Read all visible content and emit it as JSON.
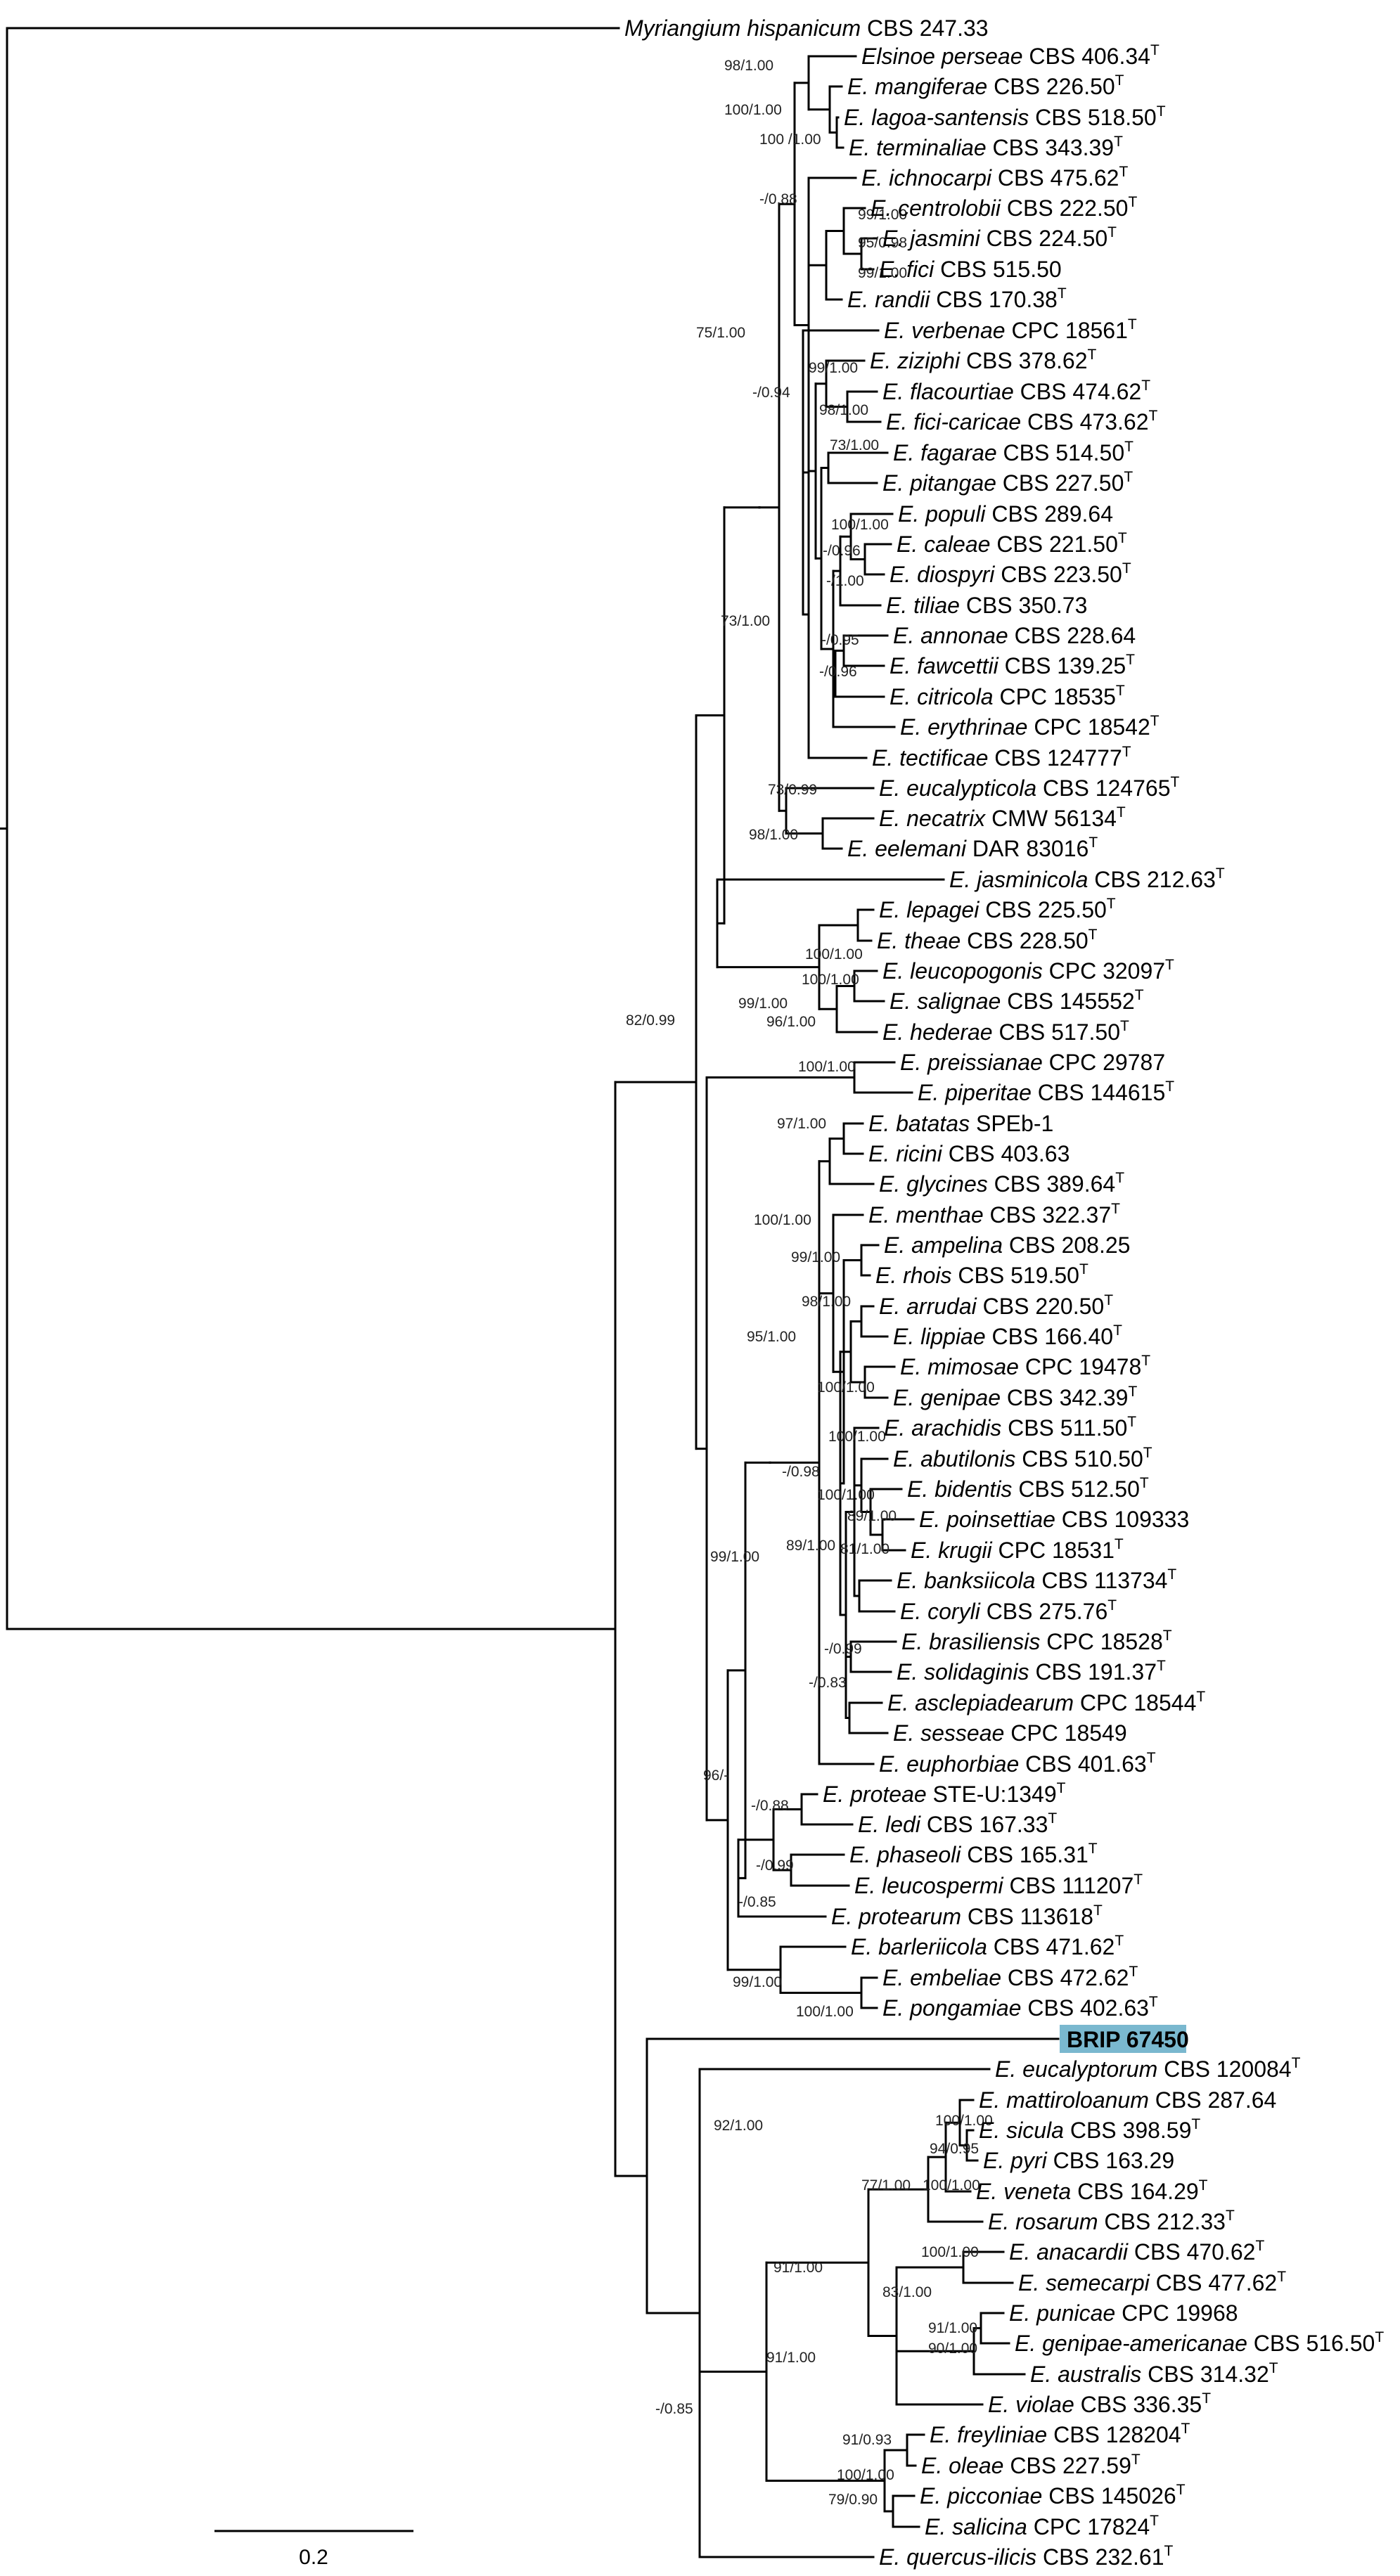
{
  "figure": {
    "highlight_label": "BRIP 67450",
    "highlight_color": "#7ab8cf",
    "scale_bar": {
      "value": "0.2"
    }
  },
  "taxa": [
    {
      "id": "myr",
      "sp": "Myriangium hispanicum",
      "str": "CBS 247.33",
      "t": false
    },
    {
      "id": "per",
      "sp": "Elsinoe perseae",
      "str": "CBS 406.34",
      "t": true
    },
    {
      "id": "man",
      "sp": "E. mangiferae",
      "str": "CBS 226.50",
      "t": true
    },
    {
      "id": "lag",
      "sp": "E. lagoa-santensis",
      "str": "CBS 518.50",
      "t": true
    },
    {
      "id": "ter",
      "sp": "E. terminaliae",
      "str": "CBS 343.39",
      "t": true
    },
    {
      "id": "ich",
      "sp": "E. ichnocarpi",
      "str": "CBS 475.62",
      "t": true
    },
    {
      "id": "cen",
      "sp": "E. centrolobii",
      "str": "CBS 222.50",
      "t": true
    },
    {
      "id": "jas",
      "sp": "E. jasmini",
      "str": "CBS 224.50",
      "t": true
    },
    {
      "id": "fic",
      "sp": "E. fici",
      "str": "CBS 515.50",
      "t": false
    },
    {
      "id": "ran",
      "sp": "E. randii",
      "str": "CBS 170.38",
      "t": true
    },
    {
      "id": "ver",
      "sp": "E. verbenae",
      "str": "CPC 18561",
      "t": true
    },
    {
      "id": "ziz",
      "sp": "E. ziziphi",
      "str": "CBS 378.62",
      "t": true
    },
    {
      "id": "fla",
      "sp": "E. flacourtiae",
      "str": "CBS 474.62",
      "t": true
    },
    {
      "id": "fcc",
      "sp": "E. fici-caricae",
      "str": "CBS 473.62",
      "t": true
    },
    {
      "id": "fag",
      "sp": "E. fagarae",
      "str": "CBS 514.50",
      "t": true
    },
    {
      "id": "pit",
      "sp": "E. pitangae",
      "str": "CBS 227.50",
      "t": true
    },
    {
      "id": "pop",
      "sp": "E. populi",
      "str": "CBS 289.64",
      "t": false
    },
    {
      "id": "cal",
      "sp": "E. caleae",
      "str": "CBS 221.50",
      "t": true
    },
    {
      "id": "dio",
      "sp": "E. diospyri",
      "str": "CBS 223.50",
      "t": true
    },
    {
      "id": "til",
      "sp": "E. tiliae",
      "str": "CBS 350.73",
      "t": false
    },
    {
      "id": "ann",
      "sp": "E. annonae",
      "str": "CBS 228.64",
      "t": false
    },
    {
      "id": "faw",
      "sp": "E. fawcettii",
      "str": "CBS 139.25",
      "t": true
    },
    {
      "id": "cit",
      "sp": "E. citricola",
      "str": "CPC 18535",
      "t": true
    },
    {
      "id": "ery",
      "sp": "E. erythrinae",
      "str": "CPC 18542",
      "t": true
    },
    {
      "id": "tec",
      "sp": "E. tectificae",
      "str": "CBS 124777",
      "t": true
    },
    {
      "id": "euc",
      "sp": "E. eucalypticola",
      "str": "CBS 124765",
      "t": true
    },
    {
      "id": "nec",
      "sp": "E. necatrix",
      "str": "CMW 56134",
      "t": true
    },
    {
      "id": "eel",
      "sp": "E. eelemani",
      "str": "DAR 83016",
      "t": true
    },
    {
      "id": "jsc",
      "sp": "E. jasminicola",
      "str": "CBS 212.63",
      "t": true
    },
    {
      "id": "lep",
      "sp": "E. lepagei",
      "str": "CBS 225.50",
      "t": true
    },
    {
      "id": "the",
      "sp": "E. theae",
      "str": "CBS 228.50",
      "t": true
    },
    {
      "id": "leu",
      "sp": "E. leucopogonis",
      "str": "CPC 32097",
      "t": true
    },
    {
      "id": "sal",
      "sp": "E. salignae",
      "str": "CBS 145552",
      "t": true
    },
    {
      "id": "hed",
      "sp": "E. hederae",
      "str": "CBS 517.50",
      "t": true
    },
    {
      "id": "pre",
      "sp": "E. preissianae",
      "str": "CPC 29787",
      "t": false
    },
    {
      "id": "pip",
      "sp": "E. piperitae",
      "str": "CBS 144615",
      "t": true
    },
    {
      "id": "bat",
      "sp": "E. batatas",
      "str": "SPEb-1",
      "t": false
    },
    {
      "id": "ric",
      "sp": "E. ricini",
      "str": "CBS 403.63",
      "t": false
    },
    {
      "id": "gly",
      "sp": "E. glycines",
      "str": "CBS 389.64",
      "t": true
    },
    {
      "id": "men",
      "sp": "E. menthae",
      "str": "CBS 322.37",
      "t": true
    },
    {
      "id": "amp",
      "sp": "E. ampelina",
      "str": "CBS 208.25",
      "t": false
    },
    {
      "id": "rho",
      "sp": "E. rhois",
      "str": "CBS 519.50",
      "t": true
    },
    {
      "id": "arr",
      "sp": "E. arrudai",
      "str": "CBS 220.50",
      "t": true
    },
    {
      "id": "lip",
      "sp": "E. lippiae",
      "str": "CBS 166.40",
      "t": true
    },
    {
      "id": "mim",
      "sp": "E. mimosae",
      "str": "CPC 19478",
      "t": true
    },
    {
      "id": "gen",
      "sp": "E. genipae",
      "str": "CBS 342.39",
      "t": true
    },
    {
      "id": "ara",
      "sp": "E. arachidis",
      "str": "CBS 511.50",
      "t": true
    },
    {
      "id": "abu",
      "sp": "E. abutilonis",
      "str": "CBS 510.50",
      "t": true
    },
    {
      "id": "bid",
      "sp": "E. bidentis",
      "str": "CBS 512.50",
      "t": true
    },
    {
      "id": "poi",
      "sp": "E. poinsettiae",
      "str": "CBS 109333",
      "t": false
    },
    {
      "id": "kru",
      "sp": "E. krugii",
      "str": "CPC 18531",
      "t": true
    },
    {
      "id": "ban",
      "sp": "E. banksiicola",
      "str": "CBS 113734",
      "t": true
    },
    {
      "id": "cor",
      "sp": "E. coryli",
      "str": "CBS 275.76",
      "t": true
    },
    {
      "id": "bra",
      "sp": "E. brasiliensis",
      "str": "CPC 18528",
      "t": true
    },
    {
      "id": "sol",
      "sp": "E. solidaginis",
      "str": "CBS 191.37",
      "t": true
    },
    {
      "id": "asc",
      "sp": "E. asclepiadearum",
      "str": "CPC 18544",
      "t": true
    },
    {
      "id": "ses",
      "sp": "E. sesseae",
      "str": "CPC 18549",
      "t": false
    },
    {
      "id": "eup",
      "sp": "E. euphorbiae",
      "str": "CBS 401.63",
      "t": true
    },
    {
      "id": "pro",
      "sp": "E. proteae",
      "str": "STE-U:1349",
      "t": true
    },
    {
      "id": "led",
      "sp": "E. ledi",
      "str": "CBS 167.33",
      "t": true
    },
    {
      "id": "pha",
      "sp": "E. phaseoli",
      "str": "CBS 165.31",
      "t": true
    },
    {
      "id": "lcs",
      "sp": "E. leucospermi",
      "str": "CBS 111207",
      "t": true
    },
    {
      "id": "prt",
      "sp": "E. protearum",
      "str": "CBS 113618",
      "t": true
    },
    {
      "id": "bar",
      "sp": "E. barleriicola",
      "str": "CBS 471.62",
      "t": true
    },
    {
      "id": "emb",
      "sp": "E. embeliae",
      "str": "CBS 472.62",
      "t": true
    },
    {
      "id": "pon",
      "sp": "E. pongamiae",
      "str": "CBS 402.63",
      "t": true
    },
    {
      "id": "brip",
      "sp": "",
      "str": "",
      "t": false,
      "highlight": true
    },
    {
      "id": "eut",
      "sp": "E. eucalyptorum",
      "str": "CBS 120084",
      "t": true
    },
    {
      "id": "mat",
      "sp": "E. mattiroloanum",
      "str": "CBS 287.64",
      "t": false
    },
    {
      "id": "sic",
      "sp": "E. sicula",
      "str": "CBS 398.59",
      "t": true
    },
    {
      "id": "pyr",
      "sp": "E. pyri",
      "str": "CBS 163.29",
      "t": false
    },
    {
      "id": "ven",
      "sp": "E. veneta",
      "str": "CBS 164.29",
      "t": true
    },
    {
      "id": "ros",
      "sp": "E. rosarum",
      "str": "CBS 212.33",
      "t": true
    },
    {
      "id": "anc",
      "sp": "E. anacardii",
      "str": "CBS 470.62",
      "t": true
    },
    {
      "id": "sem",
      "sp": "E. semecarpi",
      "str": "CBS 477.62",
      "t": true
    },
    {
      "id": "pun",
      "sp": "E. punicae",
      "str": "CPC 19968",
      "t": false
    },
    {
      "id": "gna",
      "sp": "E. genipae-americanae",
      "str": "CBS 516.50",
      "t": true
    },
    {
      "id": "aus",
      "sp": "E. australis",
      "str": "CBS 314.32",
      "t": true
    },
    {
      "id": "vio",
      "sp": "E. violae",
      "str": "CBS 336.35",
      "t": true
    },
    {
      "id": "fre",
      "sp": "E. freyliniae",
      "str": "CBS 128204",
      "t": true
    },
    {
      "id": "ole",
      "sp": "E. oleae",
      "str": "CBS 227.59",
      "t": true
    },
    {
      "id": "pic",
      "sp": "E. picconiae",
      "str": "CBS 145026",
      "t": true
    },
    {
      "id": "sli",
      "sp": "E. salicina",
      "str": "CPC 17824",
      "t": true
    },
    {
      "id": "que",
      "sp": "E. quercus-ilicis",
      "str": "CBS 232.61",
      "t": true
    }
  ],
  "supports": [
    "98/1.00",
    "100/1.00",
    "100 /1.00",
    "-/0.88",
    "99/1.00",
    "95/0.98",
    "99/1.00",
    "75/1.00",
    "99/1.00",
    "-/0.94",
    "98/1.00",
    "73/1.00",
    "100/1.00",
    "-/1.00",
    "-/0.96",
    "-/0.95",
    "-/0.96",
    "73/1.00",
    "73/0.99",
    "98/1.00",
    "100/1.00",
    "99/1.00",
    "100/1.00",
    "96/1.00",
    "82/0.99",
    "100/1.00",
    "97/1.00",
    "100/1.00",
    "99/1.00",
    "98/1.00",
    "95/1.00",
    "100/1.00",
    "100/1.00",
    "-/0.98",
    "100/1.00",
    "89/1.00",
    "89/1.00",
    "81/1.00",
    "-/0.99",
    "-/0.83",
    "99/1.00",
    "96/-",
    "-/0.88",
    "-/0.99",
    "-/0.85",
    "99/1.00",
    "100/1.00",
    "92/1.00",
    "91/1.00",
    "94/0.95",
    "100/1.00",
    "100/1.00",
    "77/1.00",
    "100/1.00",
    "83/1.00",
    "91/1.00",
    "90/1.00",
    "91/1.00",
    "91/0.93",
    "100/1.00",
    "79/0.90",
    "-/0.85"
  ]
}
